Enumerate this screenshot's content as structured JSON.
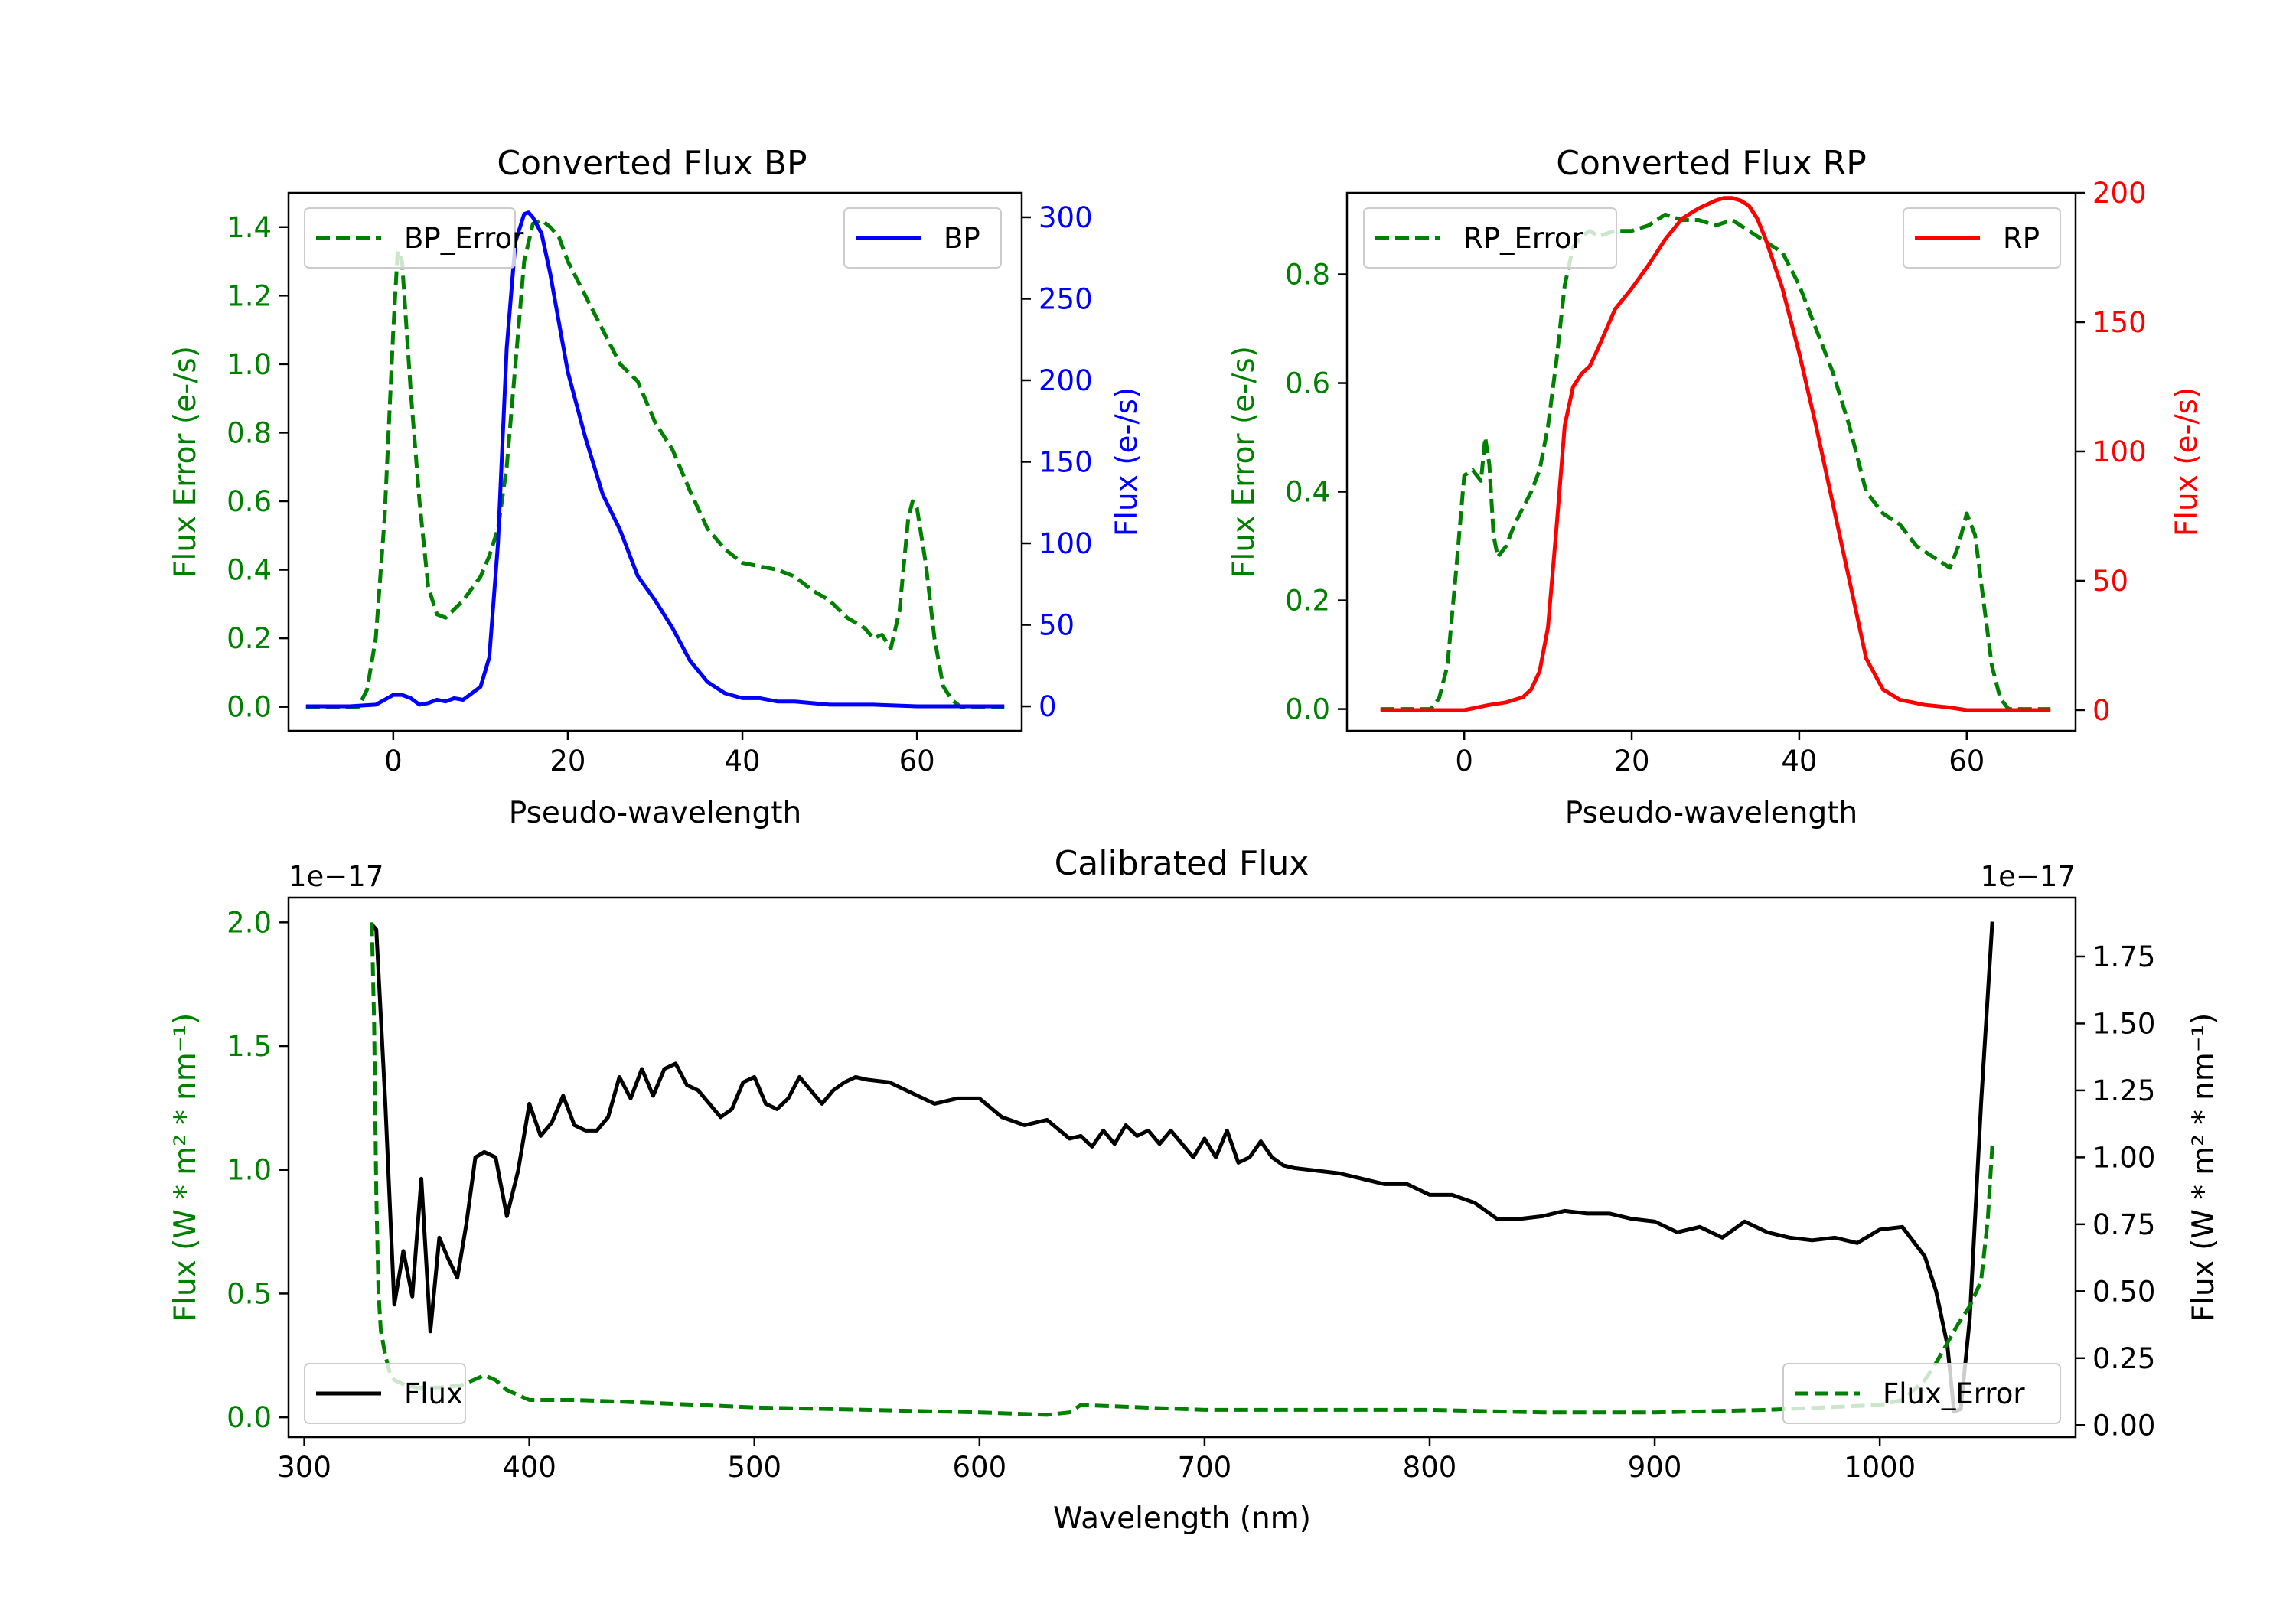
{
  "chart_data": [
    {
      "type": "line",
      "title": "Converted Flux BP",
      "xlabel": "Pseudo-wavelength",
      "ylabel_left": "Flux Error (e-/s)",
      "ylabel_right": "Flux (e-/s)",
      "xlim": [
        -12,
        72
      ],
      "ylim_left": [
        -0.07,
        1.5
      ],
      "ylim_right": [
        -15,
        315
      ],
      "x_ticks": [
        "0",
        "20",
        "40",
        "60"
      ],
      "y_ticks_left": [
        "0.0",
        "0.2",
        "0.4",
        "0.6",
        "0.8",
        "1.0",
        "1.2",
        "1.4"
      ],
      "y_ticks_right": [
        "0",
        "50",
        "100",
        "150",
        "200",
        "250",
        "300"
      ],
      "left_color": "#008000",
      "right_color": "#0000ff",
      "legend_left": "BP_Error",
      "legend_right": "BP",
      "series": [
        {
          "name": "BP_Error",
          "axis": "left",
          "style": "dashed",
          "color": "#008000",
          "x": [
            -10,
            -4,
            -3,
            -2,
            -1,
            0,
            0.5,
            1,
            2,
            3,
            4,
            5,
            6,
            8,
            10,
            11,
            12,
            13,
            14,
            15,
            16,
            17,
            18,
            19,
            20,
            22,
            24,
            26,
            28,
            30,
            32,
            34,
            36,
            38,
            40,
            42,
            44,
            46,
            48,
            50,
            52,
            54,
            55,
            56,
            57,
            58,
            59,
            59.5,
            60,
            61,
            62,
            63,
            64,
            65,
            66,
            70
          ],
          "y": [
            0,
            0,
            0.05,
            0.2,
            0.55,
            1.1,
            1.33,
            1.3,
            0.92,
            0.6,
            0.35,
            0.27,
            0.26,
            0.31,
            0.38,
            0.44,
            0.52,
            0.7,
            1.0,
            1.3,
            1.41,
            1.42,
            1.4,
            1.37,
            1.3,
            1.2,
            1.1,
            1.0,
            0.95,
            0.83,
            0.75,
            0.63,
            0.52,
            0.46,
            0.42,
            0.41,
            0.4,
            0.38,
            0.34,
            0.31,
            0.26,
            0.23,
            0.2,
            0.21,
            0.17,
            0.28,
            0.55,
            0.6,
            0.58,
            0.42,
            0.2,
            0.06,
            0.02,
            0,
            0,
            0
          ]
        },
        {
          "name": "BP",
          "axis": "right",
          "style": "solid",
          "color": "#0000ff",
          "x": [
            -10,
            -5,
            -2,
            0,
            1,
            2,
            3,
            4,
            5,
            6,
            7,
            8,
            9,
            10,
            11,
            12,
            13,
            14,
            15,
            15.5,
            16,
            16.5,
            17,
            18,
            19,
            20,
            22,
            24,
            26,
            28,
            30,
            32,
            34,
            36,
            38,
            40,
            42,
            44,
            46,
            50,
            55,
            60,
            65,
            70
          ],
          "y": [
            0,
            0,
            1,
            7,
            7,
            5,
            1,
            2,
            4,
            3,
            5,
            4,
            8,
            12,
            30,
            100,
            220,
            285,
            302,
            303,
            300,
            295,
            290,
            265,
            235,
            205,
            165,
            130,
            108,
            80,
            65,
            48,
            28,
            15,
            8,
            5,
            5,
            3,
            3,
            1,
            1,
            0,
            0,
            0
          ]
        }
      ]
    },
    {
      "type": "line",
      "title": "Converted Flux RP",
      "xlabel": "Pseudo-wavelength",
      "ylabel_left": "Flux Error (e-/s)",
      "ylabel_right": "Flux (e-/s)",
      "xlim": [
        -14,
        73
      ],
      "ylim_left": [
        -0.04,
        0.95
      ],
      "ylim_right": [
        -8,
        200
      ],
      "x_ticks": [
        "0",
        "20",
        "40",
        "60"
      ],
      "y_ticks_left": [
        "0.0",
        "0.2",
        "0.4",
        "0.6",
        "0.8"
      ],
      "y_ticks_right": [
        "0",
        "50",
        "100",
        "150",
        "200"
      ],
      "left_color": "#008000",
      "right_color": "#ff0000",
      "legend_left": "RP_Error",
      "legend_right": "RP",
      "series": [
        {
          "name": "RP_Error",
          "axis": "left",
          "style": "dashed",
          "color": "#008000",
          "x": [
            -10,
            -4,
            -3,
            -2,
            -1,
            0,
            1,
            2,
            2.5,
            3,
            3.5,
            4,
            5,
            6,
            7,
            8,
            9,
            10,
            11,
            12,
            13,
            14,
            15,
            16,
            18,
            20,
            22,
            24,
            26,
            28,
            30,
            32,
            34,
            36,
            38,
            40,
            42,
            44,
            46,
            48,
            50,
            52,
            54,
            56,
            57,
            58,
            59,
            60,
            61,
            62,
            63,
            64,
            65,
            70
          ],
          "y": [
            0,
            0,
            0.02,
            0.08,
            0.25,
            0.43,
            0.44,
            0.42,
            0.5,
            0.45,
            0.32,
            0.28,
            0.3,
            0.34,
            0.37,
            0.4,
            0.44,
            0.52,
            0.64,
            0.78,
            0.85,
            0.87,
            0.88,
            0.87,
            0.88,
            0.88,
            0.89,
            0.91,
            0.9,
            0.9,
            0.89,
            0.9,
            0.88,
            0.86,
            0.84,
            0.78,
            0.7,
            0.62,
            0.52,
            0.4,
            0.36,
            0.34,
            0.3,
            0.28,
            0.27,
            0.26,
            0.3,
            0.36,
            0.32,
            0.2,
            0.08,
            0.02,
            0,
            0
          ]
        },
        {
          "name": "RP",
          "axis": "right",
          "style": "solid",
          "color": "#ff0000",
          "x": [
            -10,
            -5,
            0,
            3,
            5,
            7,
            8,
            9,
            10,
            11,
            12,
            13,
            14,
            15,
            16,
            18,
            20,
            22,
            24,
            26,
            28,
            30,
            31,
            32,
            33,
            34,
            35,
            36,
            38,
            40,
            42,
            44,
            46,
            48,
            50,
            52,
            55,
            58,
            60,
            65,
            70
          ],
          "y": [
            0,
            0,
            0,
            2,
            3,
            5,
            8,
            15,
            32,
            70,
            110,
            125,
            130,
            133,
            140,
            155,
            163,
            172,
            182,
            190,
            194,
            197,
            198,
            198,
            197,
            195,
            190,
            182,
            163,
            138,
            110,
            80,
            50,
            20,
            8,
            4,
            2,
            1,
            0,
            0,
            0
          ]
        }
      ]
    },
    {
      "type": "line",
      "title": "Calibrated Flux",
      "xlabel": "Wavelength (nm)",
      "ylabel_left": "Flux (W * m² * nm⁻¹)",
      "ylabel_right": "Flux (W * m² * nm⁻¹)",
      "offset_left": "1e−17",
      "offset_right": "1e−17",
      "xlim": [
        293,
        1087
      ],
      "ylim_left": [
        -0.08,
        2.1
      ],
      "ylim_right": [
        -0.045,
        1.97
      ],
      "x_ticks": [
        "300",
        "400",
        "500",
        "600",
        "700",
        "800",
        "900",
        "1000"
      ],
      "y_ticks_left": [
        "0.0",
        "0.5",
        "1.0",
        "1.5",
        "2.0"
      ],
      "y_ticks_right": [
        "0.00",
        "0.25",
        "0.50",
        "0.75",
        "1.00",
        "1.25",
        "1.50",
        "1.75"
      ],
      "left_color": "#008000",
      "right_color": "#000000",
      "legend_left": "Flux",
      "legend_right": "Flux_Error",
      "series": [
        {
          "name": "Flux",
          "axis": "right",
          "style": "solid",
          "color": "#000000",
          "x": [
            330,
            332,
            336,
            340,
            344,
            348,
            352,
            356,
            360,
            364,
            368,
            372,
            376,
            380,
            385,
            390,
            395,
            400,
            405,
            410,
            415,
            420,
            425,
            430,
            435,
            440,
            445,
            450,
            455,
            460,
            465,
            470,
            475,
            480,
            485,
            490,
            495,
            500,
            505,
            510,
            515,
            520,
            525,
            530,
            535,
            540,
            545,
            550,
            560,
            570,
            580,
            590,
            600,
            610,
            620,
            630,
            640,
            645,
            650,
            655,
            660,
            665,
            670,
            675,
            680,
            685,
            690,
            695,
            700,
            705,
            710,
            715,
            720,
            725,
            730,
            735,
            740,
            750,
            760,
            770,
            780,
            790,
            800,
            810,
            820,
            830,
            840,
            850,
            860,
            870,
            880,
            890,
            900,
            910,
            920,
            930,
            940,
            950,
            960,
            970,
            980,
            990,
            1000,
            1010,
            1020,
            1025,
            1030,
            1033,
            1036,
            1040,
            1045,
            1050
          ],
          "y": [
            1.87,
            1.85,
            1.2,
            0.45,
            0.65,
            0.48,
            0.92,
            0.35,
            0.7,
            0.62,
            0.55,
            0.75,
            1.0,
            1.02,
            1.0,
            0.78,
            0.95,
            1.2,
            1.08,
            1.13,
            1.23,
            1.12,
            1.1,
            1.1,
            1.15,
            1.3,
            1.22,
            1.33,
            1.23,
            1.33,
            1.35,
            1.27,
            1.25,
            1.2,
            1.15,
            1.18,
            1.28,
            1.3,
            1.2,
            1.18,
            1.22,
            1.3,
            1.25,
            1.2,
            1.25,
            1.28,
            1.3,
            1.29,
            1.28,
            1.24,
            1.2,
            1.22,
            1.22,
            1.15,
            1.12,
            1.14,
            1.07,
            1.08,
            1.04,
            1.1,
            1.05,
            1.12,
            1.08,
            1.1,
            1.05,
            1.1,
            1.05,
            1.0,
            1.07,
            1.0,
            1.1,
            0.98,
            1.0,
            1.06,
            1.0,
            0.97,
            0.96,
            0.95,
            0.94,
            0.92,
            0.9,
            0.9,
            0.86,
            0.86,
            0.83,
            0.77,
            0.77,
            0.78,
            0.8,
            0.79,
            0.79,
            0.77,
            0.76,
            0.72,
            0.74,
            0.7,
            0.76,
            0.72,
            0.7,
            0.69,
            0.7,
            0.68,
            0.73,
            0.74,
            0.63,
            0.5,
            0.3,
            0.05,
            0.06,
            0.4,
            1.2,
            1.88
          ]
        },
        {
          "name": "Flux_Error",
          "axis": "left",
          "style": "dashed",
          "color": "#008000",
          "x": [
            330,
            331,
            332,
            333,
            334,
            336,
            338,
            340,
            345,
            350,
            360,
            370,
            380,
            385,
            390,
            395,
            400,
            420,
            450,
            500,
            550,
            600,
            630,
            640,
            645,
            700,
            750,
            800,
            850,
            900,
            950,
            1000,
            1010,
            1020,
            1025,
            1030,
            1035,
            1040,
            1045,
            1048,
            1050
          ],
          "y": [
            2.0,
            1.6,
            0.9,
            0.5,
            0.35,
            0.25,
            0.18,
            0.15,
            0.13,
            0.12,
            0.12,
            0.13,
            0.17,
            0.15,
            0.11,
            0.09,
            0.07,
            0.07,
            0.06,
            0.04,
            0.03,
            0.02,
            0.01,
            0.02,
            0.05,
            0.03,
            0.03,
            0.03,
            0.02,
            0.02,
            0.03,
            0.05,
            0.07,
            0.15,
            0.22,
            0.3,
            0.38,
            0.45,
            0.55,
            0.8,
            1.1
          ]
        }
      ]
    }
  ]
}
